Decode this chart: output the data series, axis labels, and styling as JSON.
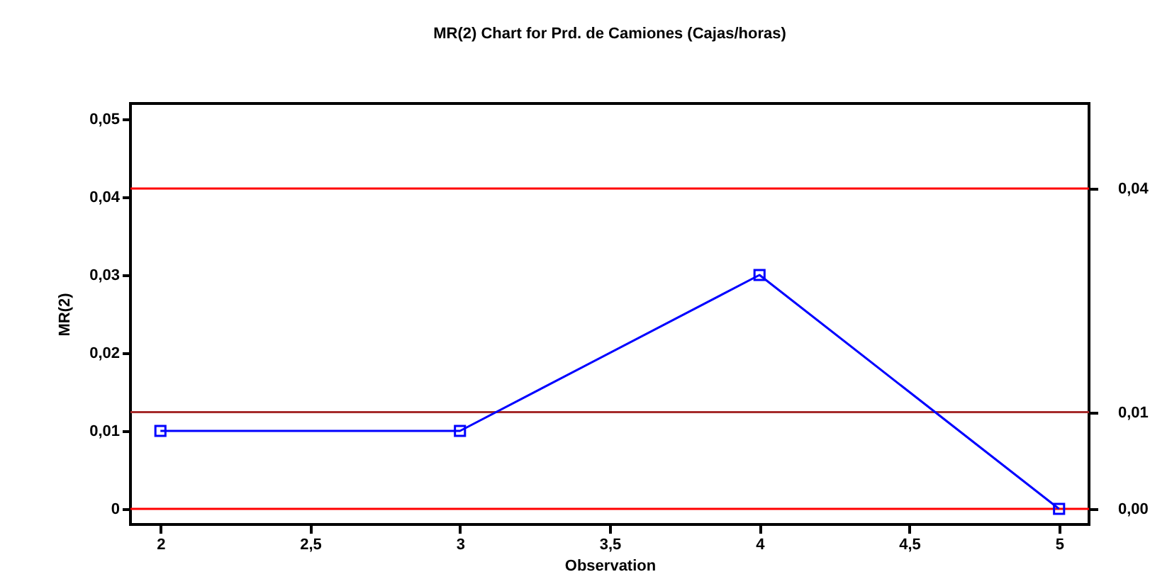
{
  "chart_data": {
    "type": "line",
    "title": "MR(2) Chart for Prd. de Camiones (Cajas/horas)",
    "xlabel": "Observation",
    "ylabel": "MR(2)",
    "x": [
      2,
      3,
      4,
      5
    ],
    "series": [
      {
        "color": "#0000ff",
        "values": [
          0.01,
          0.01,
          0.03,
          0
        ]
      }
    ],
    "xlim": [
      1.9,
      5.1
    ],
    "ylim": [
      -0.002,
      0.052
    ],
    "xticks": [
      2,
      {
        "value": 2.5,
        "label": "2,5"
      },
      3,
      {
        "value": 3.5,
        "label": "3,5"
      },
      4,
      {
        "value": 4.5,
        "label": "4,5"
      },
      5
    ],
    "yticks": [
      0,
      {
        "value": 0.01,
        "label": "0,01"
      },
      {
        "value": 0.02,
        "label": "0,02"
      },
      {
        "value": 0.03,
        "label": "0,03"
      },
      {
        "value": 0.04,
        "label": "0,04"
      },
      {
        "value": 0.05,
        "label": "0,05"
      }
    ],
    "ref_lines": [
      {
        "axis": "y",
        "value": 0.0411,
        "label": "0,04",
        "color": "#ff0000"
      },
      {
        "axis": "y",
        "value": 0.0124,
        "label": "0,01",
        "color": "#a52a2a"
      },
      {
        "axis": "y",
        "value": 0,
        "label": "0,00",
        "color": "#ff0000"
      }
    ],
    "marker": "square",
    "line_style": "solid",
    "grid": false
  }
}
